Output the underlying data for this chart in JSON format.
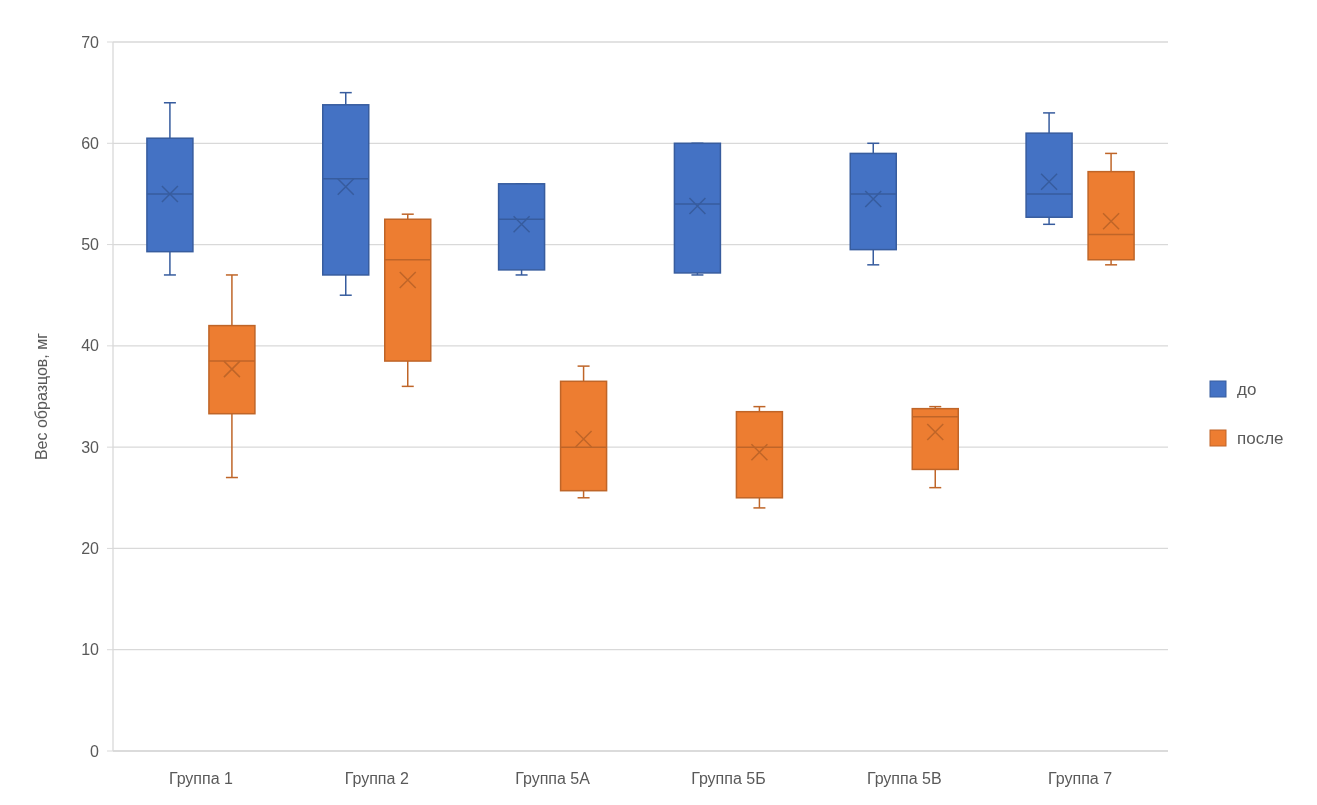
{
  "chart_data": {
    "type": "box",
    "ylabel": "Вес образцов, мг",
    "categories": [
      "Группа 1",
      "Группа 2",
      "Группа 5А",
      "Группа 5Б",
      "Группа 5В",
      "Группа 7"
    ],
    "series": [
      {
        "name": "до",
        "color": "#4472c4",
        "boxes": [
          {
            "low": 47,
            "q1": 49.3,
            "median": 55,
            "q3": 60.5,
            "high": 64,
            "mean": 55
          },
          {
            "low": 45,
            "q1": 47,
            "median": 56.5,
            "q3": 63.8,
            "high": 65,
            "mean": 55.7
          },
          {
            "low": 47,
            "q1": 47.5,
            "median": 52.5,
            "q3": 56,
            "high": 56,
            "mean": 52
          },
          {
            "low": 47,
            "q1": 47.2,
            "median": 54,
            "q3": 60,
            "high": 60,
            "mean": 53.8
          },
          {
            "low": 48,
            "q1": 49.5,
            "median": 55,
            "q3": 59,
            "high": 60,
            "mean": 54.5
          },
          {
            "low": 52,
            "q1": 52.7,
            "median": 55,
            "q3": 61,
            "high": 63,
            "mean": 56.2
          }
        ]
      },
      {
        "name": "после",
        "color": "#ed7d31",
        "boxes": [
          {
            "low": 27,
            "q1": 33.3,
            "median": 38.5,
            "q3": 42,
            "high": 47,
            "mean": 37.7
          },
          {
            "low": 36,
            "q1": 38.5,
            "median": 48.5,
            "q3": 52.5,
            "high": 53,
            "mean": 46.5
          },
          {
            "low": 25,
            "q1": 25.7,
            "median": 30,
            "q3": 36.5,
            "high": 38,
            "mean": 30.8
          },
          {
            "low": 24,
            "q1": 25,
            "median": 30,
            "q3": 33.5,
            "high": 34,
            "mean": 29.5
          },
          {
            "low": 26,
            "q1": 27.8,
            "median": 33,
            "q3": 33.8,
            "high": 34,
            "mean": 31.5
          },
          {
            "low": 48,
            "q1": 48.5,
            "median": 51,
            "q3": 57.2,
            "high": 59,
            "mean": 52.3
          }
        ]
      }
    ],
    "ylim": [
      0,
      70
    ],
    "yticks": [
      0,
      10,
      20,
      30,
      40,
      50,
      60,
      70
    ],
    "grid": "y",
    "legend": "right"
  }
}
